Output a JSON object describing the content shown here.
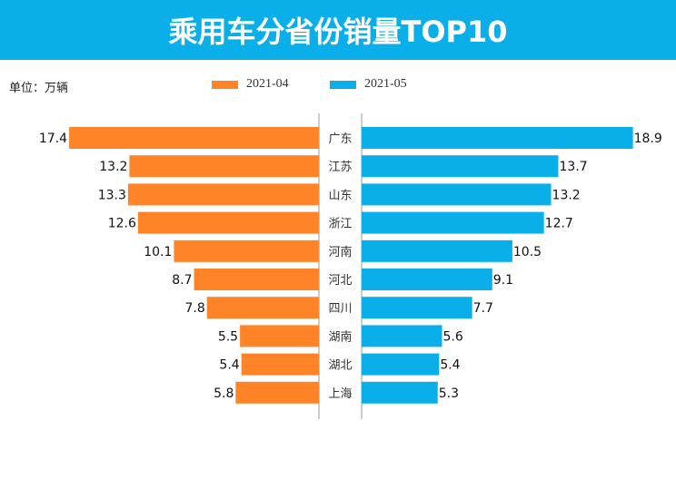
{
  "header": {
    "title": "乘用车分省份销量TOP10"
  },
  "unit_label": "单位：万辆",
  "colors": {
    "header_bg": "#0AAFE9",
    "series_a": "#FF8427",
    "series_b": "#0AAFE9"
  },
  "chart_data": {
    "type": "bar",
    "orientation": "horizontal-butterfly",
    "title": "乘用车分省份销量TOP10",
    "unit": "万辆",
    "categories": [
      "广东",
      "江苏",
      "山东",
      "浙江",
      "河南",
      "河北",
      "四川",
      "湖南",
      "湖北",
      "上海"
    ],
    "series": [
      {
        "name": "2021-04",
        "color": "#FF8427",
        "side": "left",
        "values": [
          17.4,
          13.2,
          13.3,
          12.6,
          10.1,
          8.7,
          7.8,
          5.5,
          5.4,
          5.8
        ]
      },
      {
        "name": "2021-05",
        "color": "#0AAFE9",
        "side": "right",
        "values": [
          18.9,
          13.7,
          13.2,
          12.7,
          10.5,
          9.1,
          7.7,
          5.6,
          5.4,
          5.3
        ]
      }
    ],
    "legend_position": "top-center",
    "grid": false
  }
}
